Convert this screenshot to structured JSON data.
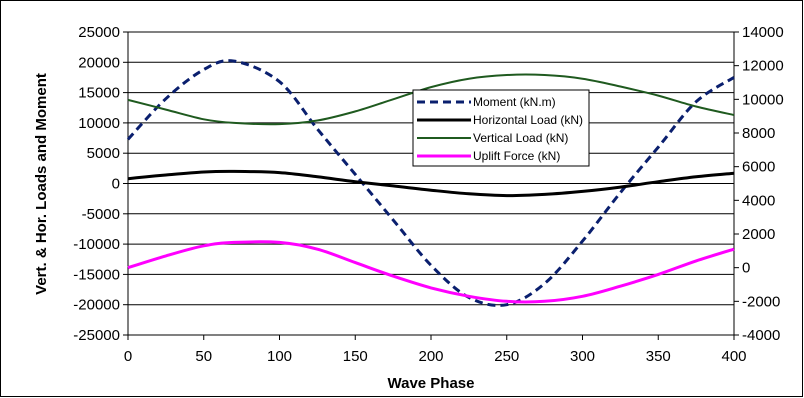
{
  "chart_data": {
    "type": "line",
    "xlabel": "Wave Phase",
    "ylabel_left": "Vert. & Hor. Loads and Moment",
    "ylabel_right": "",
    "xlim": [
      0,
      400
    ],
    "ylim_left": [
      -25000,
      25000
    ],
    "ylim_right": [
      -4000,
      14000
    ],
    "x_ticks": [
      0,
      50,
      100,
      150,
      200,
      250,
      300,
      350,
      400
    ],
    "y_ticks_left": [
      -25000,
      -20000,
      -15000,
      -10000,
      -5000,
      0,
      5000,
      10000,
      15000,
      20000,
      25000
    ],
    "y_ticks_right": [
      -4000,
      -2000,
      0,
      2000,
      4000,
      6000,
      8000,
      10000,
      12000,
      14000
    ],
    "grid": "horizontal",
    "legend_position": "upper-right inside plot",
    "x": [
      0,
      25,
      50,
      70,
      100,
      125,
      150,
      175,
      200,
      225,
      250,
      275,
      300,
      325,
      350,
      375,
      400
    ],
    "series": [
      {
        "name": "Moment (kN.m)",
        "axis": "left",
        "color": "#0a1f6e",
        "style": "dashed",
        "values": [
          7300,
          14000,
          18800,
          20200,
          16800,
          9000,
          1500,
          -6000,
          -13500,
          -18800,
          -20000,
          -16500,
          -9500,
          -1500,
          6000,
          13500,
          17500
        ]
      },
      {
        "name": "Horizontal Load (kN)",
        "axis": "left",
        "color": "#000000",
        "style": "solid",
        "values": [
          800,
          1400,
          1900,
          2000,
          1800,
          1100,
          300,
          -400,
          -1100,
          -1700,
          -2000,
          -1800,
          -1300,
          -600,
          300,
          1100,
          1700
        ]
      },
      {
        "name": "Vertical Load (kN)",
        "axis": "left",
        "color": "#1f5a1f",
        "style": "solid",
        "values": [
          13800,
          12200,
          10600,
          10000,
          9800,
          10400,
          11900,
          13900,
          15900,
          17300,
          17900,
          17900,
          17300,
          16000,
          14500,
          12700,
          11300
        ]
      },
      {
        "name": "Uplift Force (kN)",
        "axis": "right",
        "color": "#ff00ff",
        "style": "solid",
        "values": [
          0,
          700,
          1300,
          1500,
          1500,
          1100,
          300,
          -500,
          -1200,
          -1700,
          -2000,
          -2000,
          -1700,
          -1100,
          -400,
          400,
          1100
        ]
      }
    ]
  }
}
